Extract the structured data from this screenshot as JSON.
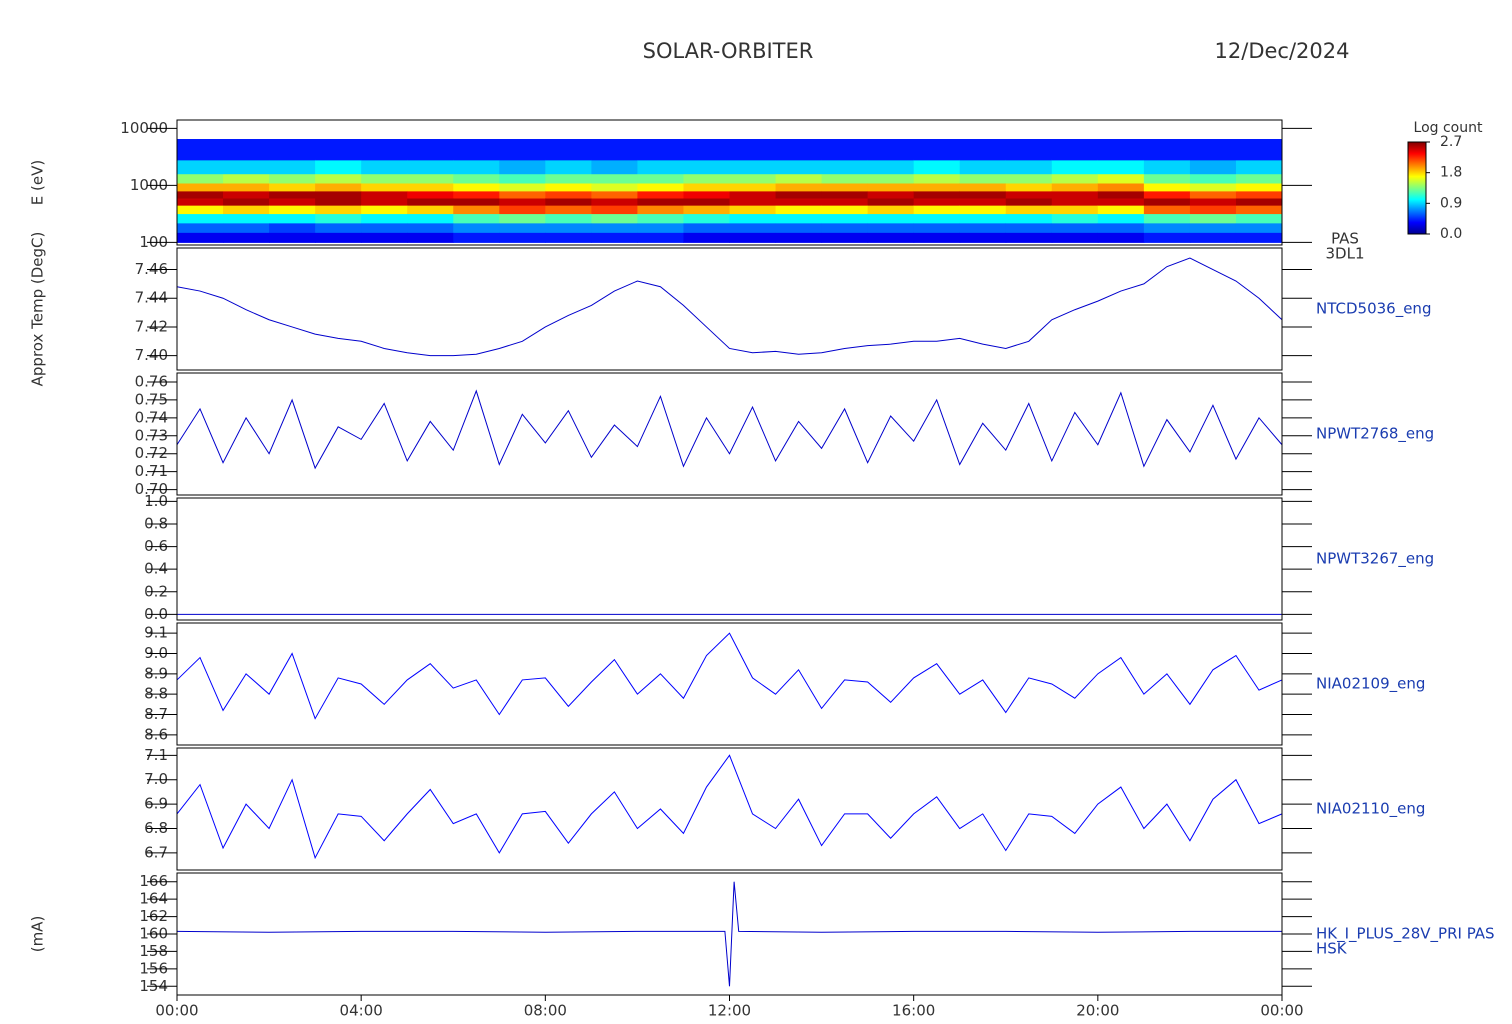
{
  "title": "SOLAR-ORBITER",
  "date": "12/Dec/2024",
  "time_axis": {
    "xlim": [
      0,
      24
    ],
    "xticks": [
      {
        "value": 0,
        "label": "00:00"
      },
      {
        "value": 4,
        "label": "04:00"
      },
      {
        "value": 8,
        "label": "08:00"
      },
      {
        "value": 12,
        "label": "12:00"
      },
      {
        "value": 16,
        "label": "16:00"
      },
      {
        "value": 20,
        "label": "20:00"
      },
      {
        "value": 24,
        "label": "00:00"
      }
    ]
  },
  "chart_data": [
    {
      "type": "heatmap",
      "ylabel": "E (eV)",
      "label_lines": [
        "PAS",
        "3DL1"
      ],
      "log_y": true,
      "ylim": [
        90,
        14000
      ],
      "yticks": [
        100,
        1000,
        10000
      ],
      "colorbar_label": "Log count",
      "zlim": [
        0,
        2.7
      ],
      "zticks": [
        {
          "value": 0,
          "label": "0.0"
        },
        0.9,
        1.8,
        2.7
      ],
      "x": [
        0,
        1,
        2,
        3,
        4,
        5,
        6,
        7,
        8,
        9,
        10,
        11,
        12,
        13,
        14,
        15,
        16,
        17,
        18,
        19,
        20,
        21,
        22,
        23,
        24
      ],
      "ybins": [
        100,
        150,
        220,
        320,
        450,
        600,
        800,
        1100,
        1600,
        2800,
        6500
      ],
      "z": [
        [
          0.3,
          0.6,
          1.0,
          1.7,
          2.5,
          2.6,
          1.9,
          1.4,
          0.9,
          0.4
        ],
        [
          0.3,
          0.6,
          1.0,
          1.8,
          2.6,
          2.5,
          1.9,
          1.5,
          0.9,
          0.4
        ],
        [
          0.3,
          0.5,
          1.0,
          1.7,
          2.5,
          2.6,
          1.8,
          1.4,
          0.9,
          0.4
        ],
        [
          0.3,
          0.6,
          1.1,
          1.8,
          2.6,
          2.6,
          1.9,
          1.5,
          1.0,
          0.4
        ],
        [
          0.3,
          0.6,
          1.0,
          1.7,
          2.5,
          2.5,
          1.8,
          1.4,
          0.9,
          0.4
        ],
        [
          0.3,
          0.6,
          1.0,
          1.8,
          2.6,
          2.4,
          1.8,
          1.4,
          0.9,
          0.4
        ],
        [
          0.4,
          0.7,
          1.2,
          2.0,
          2.6,
          2.3,
          1.7,
          1.3,
          0.9,
          0.4
        ],
        [
          0.4,
          0.7,
          1.3,
          2.2,
          2.5,
          2.1,
          1.6,
          1.2,
          0.8,
          0.4
        ],
        [
          0.4,
          0.7,
          1.2,
          2.1,
          2.6,
          2.2,
          1.7,
          1.3,
          0.9,
          0.4
        ],
        [
          0.4,
          0.7,
          1.3,
          2.2,
          2.5,
          2.1,
          1.6,
          1.3,
          0.8,
          0.4
        ],
        [
          0.4,
          0.7,
          1.2,
          2.0,
          2.6,
          2.3,
          1.7,
          1.3,
          0.9,
          0.4
        ],
        [
          0.3,
          0.6,
          1.1,
          1.9,
          2.6,
          2.4,
          1.8,
          1.4,
          0.9,
          0.4
        ],
        [
          0.3,
          0.6,
          1.0,
          1.8,
          2.5,
          2.5,
          1.8,
          1.4,
          0.9,
          0.4
        ],
        [
          0.3,
          0.6,
          1.0,
          1.7,
          2.5,
          2.6,
          1.9,
          1.5,
          0.9,
          0.4
        ],
        [
          0.3,
          0.6,
          1.0,
          1.7,
          2.5,
          2.6,
          1.9,
          1.4,
          0.9,
          0.4
        ],
        [
          0.3,
          0.6,
          1.0,
          1.8,
          2.6,
          2.5,
          1.9,
          1.4,
          0.9,
          0.4
        ],
        [
          0.3,
          0.6,
          1.0,
          1.7,
          2.5,
          2.6,
          1.9,
          1.5,
          1.0,
          0.4
        ],
        [
          0.3,
          0.6,
          1.0,
          1.7,
          2.5,
          2.6,
          1.9,
          1.4,
          0.9,
          0.4
        ],
        [
          0.3,
          0.6,
          1.0,
          1.8,
          2.6,
          2.5,
          1.8,
          1.4,
          0.9,
          0.4
        ],
        [
          0.3,
          0.6,
          1.1,
          1.8,
          2.5,
          2.5,
          1.9,
          1.5,
          1.0,
          0.4
        ],
        [
          0.3,
          0.6,
          1.0,
          1.7,
          2.5,
          2.6,
          2.0,
          1.6,
          1.0,
          0.4
        ],
        [
          0.4,
          0.7,
          1.2,
          2.1,
          2.6,
          2.3,
          1.7,
          1.3,
          0.9,
          0.4
        ],
        [
          0.4,
          0.7,
          1.3,
          2.2,
          2.5,
          2.1,
          1.6,
          1.2,
          0.8,
          0.4
        ],
        [
          0.4,
          0.7,
          1.2,
          2.1,
          2.6,
          2.2,
          1.7,
          1.3,
          0.9,
          0.4
        ]
      ]
    },
    {
      "type": "line",
      "ylabel": "Approx Temp (DegC)",
      "label": "NTCD5036_eng",
      "color": "#0000cc",
      "ylim": [
        7.39,
        7.475
      ],
      "yticks": [
        {
          "value": 7.4,
          "label": "7.40"
        },
        7.42,
        7.44,
        7.46
      ],
      "x": [
        0,
        0.5,
        1,
        1.5,
        2,
        2.5,
        3,
        3.5,
        4,
        4.5,
        5,
        5.5,
        6,
        6.5,
        7,
        7.5,
        8,
        8.5,
        9,
        9.5,
        10,
        10.5,
        11,
        11.5,
        12,
        12.5,
        13,
        13.5,
        14,
        14.5,
        15,
        15.5,
        16,
        16.5,
        17,
        17.5,
        18,
        18.5,
        19,
        19.5,
        20,
        20.5,
        21,
        21.5,
        22,
        22.5,
        23,
        23.5,
        24
      ],
      "values": [
        7.448,
        7.445,
        7.44,
        7.432,
        7.425,
        7.42,
        7.415,
        7.412,
        7.41,
        7.405,
        7.402,
        7.4,
        7.4,
        7.401,
        7.405,
        7.41,
        7.42,
        7.428,
        7.435,
        7.445,
        7.452,
        7.448,
        7.435,
        7.42,
        7.405,
        7.402,
        7.403,
        7.401,
        7.402,
        7.405,
        7.407,
        7.408,
        7.41,
        7.41,
        7.412,
        7.408,
        7.405,
        7.41,
        7.425,
        7.432,
        7.438,
        7.445,
        7.45,
        7.462,
        7.468,
        7.46,
        7.452,
        7.44,
        7.425
      ]
    },
    {
      "type": "line",
      "label": "NPWT2768_eng",
      "color": "#0000cc",
      "ylim": [
        0.697,
        0.765
      ],
      "yticks": [
        {
          "value": 0.7,
          "label": "0.70"
        },
        0.71,
        0.72,
        0.73,
        0.74,
        0.75,
        0.76
      ],
      "x": [
        0,
        0.5,
        1,
        1.5,
        2,
        2.5,
        3,
        3.5,
        4,
        4.5,
        5,
        5.5,
        6,
        6.5,
        7,
        7.5,
        8,
        8.5,
        9,
        9.5,
        10,
        10.5,
        11,
        11.5,
        12,
        12.5,
        13,
        13.5,
        14,
        14.5,
        15,
        15.5,
        16,
        16.5,
        17,
        17.5,
        18,
        18.5,
        19,
        19.5,
        20,
        20.5,
        21,
        21.5,
        22,
        22.5,
        23,
        23.5,
        24
      ],
      "values": [
        0.725,
        0.745,
        0.715,
        0.74,
        0.72,
        0.75,
        0.712,
        0.735,
        0.728,
        0.748,
        0.716,
        0.738,
        0.722,
        0.755,
        0.714,
        0.742,
        0.726,
        0.744,
        0.718,
        0.736,
        0.724,
        0.752,
        0.713,
        0.74,
        0.72,
        0.746,
        0.716,
        0.738,
        0.723,
        0.745,
        0.715,
        0.741,
        0.727,
        0.75,
        0.714,
        0.737,
        0.722,
        0.748,
        0.716,
        0.743,
        0.725,
        0.754,
        0.713,
        0.739,
        0.721,
        0.747,
        0.717,
        0.74,
        0.725
      ]
    },
    {
      "type": "line",
      "label": "NPWT3267_eng",
      "color": "#0000cc",
      "ylim": [
        -0.05,
        1.03
      ],
      "yticks": [
        {
          "value": 0,
          "label": "0.0"
        },
        0.2,
        0.4,
        0.6,
        0.8,
        {
          "value": 1,
          "label": "1.0"
        }
      ],
      "x": [
        0,
        0.5,
        1,
        1.5,
        2,
        2.5,
        3,
        3.5,
        4,
        4.5,
        5,
        5.5,
        6,
        6.5,
        7,
        7.5,
        8,
        8.5,
        9,
        9.5,
        10,
        10.5,
        11,
        11.5,
        12,
        12.5,
        13,
        13.5,
        14,
        14.5,
        15,
        15.5,
        16,
        16.5,
        17,
        17.5,
        18,
        18.5,
        19,
        19.5,
        20,
        20.5,
        21,
        21.5,
        22,
        22.5,
        23,
        23.5,
        24
      ],
      "values": [
        0,
        0,
        0,
        0,
        0,
        0,
        0,
        0,
        0,
        0,
        0,
        0,
        0,
        0,
        0,
        0,
        0,
        0,
        0,
        0,
        0,
        0,
        0,
        0,
        0,
        0,
        0,
        0,
        0,
        0,
        0,
        0,
        0,
        0,
        0,
        0,
        0,
        0,
        0,
        0,
        0,
        0,
        0,
        0,
        0,
        0,
        0,
        0,
        0
      ]
    },
    {
      "type": "line",
      "label": "NIA02109_eng",
      "color": "#0000ff",
      "ylim": [
        8.55,
        9.15
      ],
      "yticks": [
        8.6,
        8.7,
        8.8,
        8.9,
        {
          "value": 9,
          "label": "9.0"
        },
        9.1
      ],
      "x": [
        0,
        0.5,
        1,
        1.5,
        2,
        2.5,
        3,
        3.5,
        4,
        4.5,
        5,
        5.5,
        6,
        6.5,
        7,
        7.5,
        8,
        8.5,
        9,
        9.5,
        10,
        10.5,
        11,
        11.5,
        12,
        12.5,
        13,
        13.5,
        14,
        14.5,
        15,
        15.5,
        16,
        16.5,
        17,
        17.5,
        18,
        18.5,
        19,
        19.5,
        20,
        20.5,
        21,
        21.5,
        22,
        22.5,
        23,
        23.5,
        24
      ],
      "values": [
        8.87,
        8.98,
        8.72,
        8.9,
        8.8,
        9.0,
        8.68,
        8.88,
        8.85,
        8.75,
        8.87,
        8.95,
        8.83,
        8.87,
        8.7,
        8.87,
        8.88,
        8.74,
        8.86,
        8.97,
        8.8,
        8.9,
        8.78,
        8.99,
        9.1,
        8.88,
        8.8,
        8.92,
        8.73,
        8.87,
        8.86,
        8.76,
        8.88,
        8.95,
        8.8,
        8.87,
        8.71,
        8.88,
        8.85,
        8.78,
        8.9,
        8.98,
        8.8,
        8.9,
        8.75,
        8.92,
        8.99,
        8.82,
        8.87
      ]
    },
    {
      "type": "line",
      "label": "NIA02110_eng",
      "color": "#0000ff",
      "ylim": [
        6.63,
        7.13
      ],
      "yticks": [
        6.7,
        6.8,
        6.9,
        {
          "value": 7,
          "label": "7.0"
        },
        7.1
      ],
      "x": [
        0,
        0.5,
        1,
        1.5,
        2,
        2.5,
        3,
        3.5,
        4,
        4.5,
        5,
        5.5,
        6,
        6.5,
        7,
        7.5,
        8,
        8.5,
        9,
        9.5,
        10,
        10.5,
        11,
        11.5,
        12,
        12.5,
        13,
        13.5,
        14,
        14.5,
        15,
        15.5,
        16,
        16.5,
        17,
        17.5,
        18,
        18.5,
        19,
        19.5,
        20,
        20.5,
        21,
        21.5,
        22,
        22.5,
        23,
        23.5,
        24
      ],
      "values": [
        6.86,
        6.98,
        6.72,
        6.9,
        6.8,
        7.0,
        6.68,
        6.86,
        6.85,
        6.75,
        6.86,
        6.96,
        6.82,
        6.86,
        6.7,
        6.86,
        6.87,
        6.74,
        6.86,
        6.95,
        6.8,
        6.88,
        6.78,
        6.97,
        7.1,
        6.86,
        6.8,
        6.92,
        6.73,
        6.86,
        6.86,
        6.76,
        6.86,
        6.93,
        6.8,
        6.86,
        6.71,
        6.86,
        6.85,
        6.78,
        6.9,
        6.97,
        6.8,
        6.9,
        6.75,
        6.92,
        7.0,
        6.82,
        6.86
      ]
    },
    {
      "type": "line",
      "ylabel": "(mA)",
      "label_lines": [
        "HK_I_PLUS_28V_PRI PAS",
        "HSK"
      ],
      "color": "#0000cc",
      "ylim": [
        153,
        167
      ],
      "yticks": [
        154,
        156,
        158,
        160,
        162,
        164,
        166
      ],
      "x": [
        0,
        2,
        4,
        6,
        8,
        10,
        11.9,
        12,
        12.1,
        12.2,
        14,
        16,
        18,
        20,
        22,
        24
      ],
      "values": [
        160.3,
        160.2,
        160.3,
        160.3,
        160.2,
        160.3,
        160.3,
        154,
        166,
        160.3,
        160.2,
        160.3,
        160.3,
        160.2,
        160.3,
        160.3
      ]
    }
  ]
}
